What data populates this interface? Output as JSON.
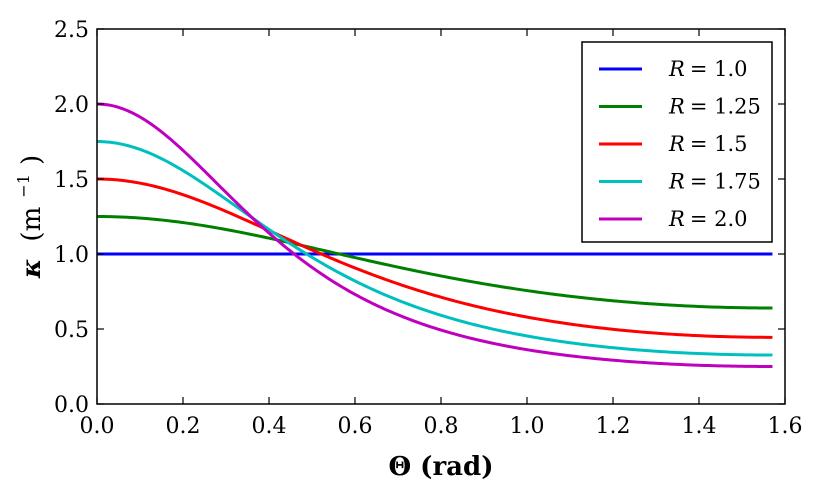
{
  "chart_data": {
    "type": "line",
    "title": "",
    "xlabel": "Θ (rad)",
    "ylabel_parts": {
      "symbol": "κ",
      "open": "(m",
      "exponent": "−1",
      "close": ")"
    },
    "xlim": [
      0.0,
      1.6
    ],
    "ylim": [
      0.0,
      2.5
    ],
    "x_ticks": [
      0.0,
      0.2,
      0.4,
      0.6,
      0.8,
      1.0,
      1.2,
      1.4,
      1.6
    ],
    "x_tick_labels": [
      "0.0",
      "0.2",
      "0.4",
      "0.6",
      "0.8",
      "1.0",
      "1.2",
      "1.4",
      "1.6"
    ],
    "y_ticks": [
      0.0,
      0.5,
      1.0,
      1.5,
      2.0,
      2.5
    ],
    "y_tick_labels": [
      "0.0",
      "0.5",
      "1.0",
      "1.5",
      "2.0",
      "2.5"
    ],
    "x_max_data": 1.5708,
    "grid": false,
    "legend_position": "top-right",
    "series": [
      {
        "name": "R = 1.0",
        "var": "R",
        "value": "1.0",
        "R": 1.0,
        "color": "#0000ff"
      },
      {
        "name": "R = 1.25",
        "var": "R",
        "value": "1.25",
        "R": 1.25,
        "color": "#008000"
      },
      {
        "name": "R = 1.5",
        "var": "R",
        "value": "1.5",
        "R": 1.5,
        "color": "#ff0000"
      },
      {
        "name": "R = 1.75",
        "var": "R",
        "value": "1.75",
        "R": 1.75,
        "color": "#00bfbf"
      },
      {
        "name": "R = 2.0",
        "var": "R",
        "value": "2.0",
        "R": 2.0,
        "color": "#bf00bf"
      }
    ]
  }
}
